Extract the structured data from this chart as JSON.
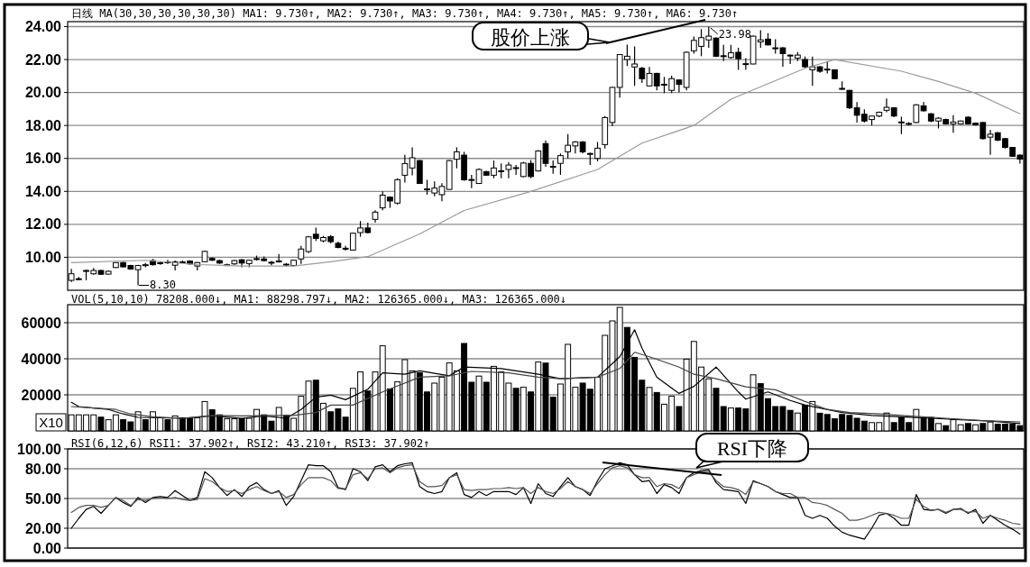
{
  "chart_data": [
    {
      "type": "candlestick",
      "categories": [
        null,
        null,
        null,
        null,
        null,
        null,
        null,
        null,
        null,
        null,
        null,
        null,
        null,
        null,
        null,
        null,
        null,
        null,
        null,
        null,
        null,
        null,
        null,
        null,
        null,
        null,
        null,
        null,
        null,
        null,
        null,
        null,
        null,
        null,
        null,
        null,
        null,
        null,
        null,
        null,
        null,
        null,
        null,
        null,
        null,
        null,
        null,
        null,
        null,
        null,
        null,
        null,
        null,
        null,
        null,
        null,
        null,
        null,
        null,
        null,
        null,
        null,
        null,
        null,
        null,
        null,
        null,
        null,
        null,
        null,
        null,
        null,
        null,
        null,
        null,
        null,
        null,
        null,
        null,
        null,
        null,
        null,
        null,
        null,
        null,
        null,
        null,
        null,
        null,
        null,
        null,
        null,
        null,
        null,
        null,
        null,
        null,
        null,
        null,
        null,
        null,
        null,
        null,
        null,
        null,
        null,
        null,
        null,
        null,
        null,
        null,
        null,
        null,
        null,
        null,
        null,
        null,
        null,
        null,
        null,
        null,
        null,
        null,
        null,
        null,
        null,
        null,
        null,
        null
      ],
      "ohlc": [
        [
          8.6,
          9.3,
          8.5,
          9.0
        ],
        [
          8.65,
          8.8,
          8.6,
          8.7
        ],
        [
          9.2,
          9.25,
          8.6,
          9.2
        ],
        [
          9.0,
          9.35,
          8.95,
          9.2
        ],
        [
          9.2,
          9.25,
          8.95,
          8.97
        ],
        [
          8.98,
          9.2,
          8.95,
          9.15
        ],
        [
          9.38,
          9.7,
          9.35,
          9.68
        ],
        [
          9.68,
          9.72,
          9.4,
          9.42
        ],
        [
          9.5,
          9.55,
          9.25,
          9.29
        ],
        [
          9.25,
          9.55,
          8.3,
          9.5
        ],
        [
          9.5,
          9.65,
          9.4,
          9.55
        ],
        [
          9.8,
          9.9,
          9.5,
          9.55
        ],
        [
          9.65,
          9.75,
          9.55,
          9.67
        ],
        [
          9.72,
          9.85,
          9.6,
          9.68
        ],
        [
          9.52,
          9.8,
          9.2,
          9.72
        ],
        [
          9.72,
          9.8,
          9.65,
          9.7
        ],
        [
          9.77,
          9.82,
          9.55,
          9.6
        ],
        [
          9.47,
          9.72,
          9.2,
          9.68
        ],
        [
          9.73,
          10.4,
          9.7,
          10.36
        ],
        [
          9.93,
          10.0,
          9.78,
          9.82
        ],
        [
          9.8,
          9.85,
          9.6,
          9.65
        ],
        [
          9.52,
          9.62,
          9.5,
          9.55
        ],
        [
          9.6,
          9.85,
          9.55,
          9.8
        ],
        [
          9.85,
          9.9,
          9.4,
          9.65
        ],
        [
          9.62,
          9.85,
          9.4,
          9.82
        ],
        [
          9.9,
          10.1,
          9.8,
          9.92
        ],
        [
          9.9,
          10.05,
          9.75,
          9.8
        ],
        [
          9.7,
          9.78,
          9.5,
          9.68
        ],
        [
          9.72,
          10.2,
          9.68,
          9.78
        ],
        [
          9.58,
          9.65,
          9.45,
          9.55
        ],
        [
          9.5,
          9.85,
          9.45,
          9.82
        ],
        [
          9.9,
          10.7,
          9.6,
          10.5
        ],
        [
          10.35,
          11.3,
          10.25,
          11.24
        ],
        [
          11.4,
          11.8,
          11.0,
          11.15
        ],
        [
          11.0,
          11.3,
          10.9,
          11.2
        ],
        [
          11.25,
          11.35,
          10.85,
          10.95
        ],
        [
          10.85,
          10.95,
          10.55,
          10.6
        ],
        [
          10.55,
          10.7,
          10.4,
          10.5
        ],
        [
          10.44,
          11.5,
          10.4,
          11.46
        ],
        [
          11.5,
          12.2,
          11.25,
          11.78
        ],
        [
          11.78,
          12.1,
          11.45,
          11.5
        ],
        [
          12.3,
          12.85,
          12.1,
          12.74
        ],
        [
          13.0,
          14.0,
          12.85,
          13.77
        ],
        [
          13.65,
          13.7,
          13.0,
          13.42
        ],
        [
          13.29,
          14.8,
          13.2,
          14.71
        ],
        [
          14.98,
          16.22,
          14.53,
          15.69
        ],
        [
          15.42,
          16.67,
          14.98,
          16.04
        ],
        [
          15.87,
          15.9,
          14.45,
          14.48
        ],
        [
          14.1,
          14.7,
          13.8,
          14.15
        ],
        [
          13.9,
          14.6,
          13.7,
          14.2
        ],
        [
          13.8,
          14.5,
          13.4,
          14.3
        ],
        [
          14.12,
          15.9,
          14.1,
          15.87
        ],
        [
          15.95,
          16.67,
          15.4,
          16.4
        ],
        [
          16.2,
          16.4,
          14.65,
          14.7
        ],
        [
          14.7,
          15.0,
          14.2,
          14.72
        ],
        [
          14.48,
          15.4,
          14.45,
          15.33
        ],
        [
          15.2,
          15.25,
          14.95,
          14.98
        ],
        [
          14.98,
          15.87,
          14.8,
          15.42
        ],
        [
          15.22,
          15.7,
          14.8,
          15.25
        ],
        [
          15.33,
          15.78,
          14.8,
          15.6
        ],
        [
          15.44,
          15.6,
          15.0,
          15.4
        ],
        [
          14.9,
          15.8,
          14.85,
          15.72
        ],
        [
          15.7,
          15.9,
          14.8,
          14.9
        ],
        [
          15.24,
          16.5,
          15.2,
          16.45
        ],
        [
          16.9,
          17.1,
          15.5,
          15.7
        ],
        [
          15.5,
          15.87,
          15.07,
          15.52
        ],
        [
          15.7,
          16.3,
          15.0,
          16.17
        ],
        [
          16.4,
          17.47,
          16.0,
          16.8
        ],
        [
          16.76,
          17.05,
          16.3,
          17.0
        ],
        [
          17.0,
          17.05,
          16.3,
          16.4
        ],
        [
          16.3,
          16.35,
          15.6,
          16.3
        ],
        [
          16.0,
          17.0,
          15.82,
          16.62
        ],
        [
          16.84,
          18.57,
          16.6,
          18.48
        ],
        [
          18.18,
          20.35,
          17.96,
          20.31
        ],
        [
          20.31,
          22.3,
          19.69,
          22.3
        ],
        [
          22.0,
          22.9,
          21.6,
          22.2
        ],
        [
          21.55,
          22.8,
          20.4,
          21.73
        ],
        [
          21.47,
          21.55,
          20.58,
          20.84
        ],
        [
          20.4,
          21.55,
          20.36,
          21.16
        ],
        [
          21.16,
          21.2,
          20.13,
          20.4
        ],
        [
          20.5,
          20.95,
          19.96,
          20.5
        ],
        [
          20.13,
          21.02,
          19.96,
          20.84
        ],
        [
          20.76,
          20.8,
          20.0,
          20.49
        ],
        [
          20.31,
          22.5,
          20.13,
          22.44
        ],
        [
          22.53,
          23.4,
          22.36,
          23.16
        ],
        [
          22.8,
          23.85,
          22.2,
          23.33
        ],
        [
          23.19,
          23.98,
          22.71,
          23.42
        ],
        [
          23.3,
          23.35,
          22.15,
          22.2
        ],
        [
          22.23,
          22.89,
          21.91,
          22.2
        ],
        [
          22.12,
          22.89,
          22.05,
          22.41
        ],
        [
          22.44,
          22.71,
          21.38,
          22.05
        ],
        [
          21.73,
          22.09,
          21.38,
          21.75
        ],
        [
          21.73,
          23.45,
          21.7,
          23.42
        ],
        [
          23.07,
          23.78,
          22.71,
          23.19
        ],
        [
          23.24,
          23.6,
          22.85,
          22.89
        ],
        [
          22.71,
          23.24,
          22.36,
          22.7
        ],
        [
          22.71,
          22.75,
          21.56,
          22.36
        ],
        [
          22.27,
          22.3,
          21.73,
          22.25
        ],
        [
          22.09,
          22.45,
          21.91,
          22.27
        ],
        [
          22.0,
          22.18,
          21.47,
          21.56
        ],
        [
          21.38,
          22.18,
          20.4,
          21.56
        ],
        [
          21.56,
          21.6,
          21.2,
          21.29
        ],
        [
          21.4,
          21.91,
          21.16,
          21.42
        ],
        [
          21.38,
          21.4,
          20.8,
          20.84
        ],
        [
          20.2,
          20.67,
          20.15,
          20.25
        ],
        [
          20.13,
          20.15,
          19.0,
          19.07
        ],
        [
          19.07,
          19.42,
          18.18,
          18.62
        ],
        [
          18.68,
          18.98,
          18.18,
          18.27
        ],
        [
          18.36,
          18.6,
          18.0,
          18.57
        ],
        [
          18.57,
          18.85,
          18.5,
          18.8
        ],
        [
          18.92,
          19.64,
          18.8,
          19.1
        ],
        [
          19.07,
          19.1,
          18.5,
          18.57
        ],
        [
          18.2,
          18.53,
          17.47,
          18.21
        ],
        [
          18.1,
          18.2,
          18.0,
          18.12
        ],
        [
          18.18,
          19.3,
          18.15,
          19.25
        ],
        [
          19.19,
          19.42,
          18.85,
          18.89
        ],
        [
          18.71,
          18.75,
          18.2,
          18.27
        ],
        [
          18.27,
          18.5,
          17.82,
          18.44
        ],
        [
          18.36,
          18.4,
          18.05,
          18.09
        ],
        [
          18.09,
          18.62,
          17.56,
          18.21
        ],
        [
          18.09,
          18.3,
          18.05,
          18.27
        ],
        [
          18.5,
          18.55,
          18.05,
          18.09
        ],
        [
          18.14,
          18.18,
          18.0,
          18.04
        ],
        [
          18.18,
          18.2,
          17.15,
          17.2
        ],
        [
          17.29,
          17.73,
          16.22,
          17.47
        ],
        [
          17.56,
          17.6,
          17.05,
          17.11
        ],
        [
          17.2,
          17.25,
          16.6,
          16.67
        ],
        [
          16.67,
          16.7,
          16.1,
          16.13
        ],
        [
          16.2,
          16.25,
          15.69,
          15.96
        ]
      ],
      "series": [
        {
          "type": "line",
          "color": "#9a9a9a",
          "values": [
            9.68,
            null,
            null,
            null,
            null,
            null,
            null,
            null,
            null,
            null,
            9.82,
            null,
            null,
            null,
            null,
            null,
            null,
            9.56,
            null,
            null,
            null,
            null,
            null,
            9.47,
            null,
            null,
            null,
            null,
            null,
            null,
            9.47,
            null,
            null,
            null,
            null,
            9.73,
            null,
            null,
            null,
            null,
            10.04,
            null,
            null,
            null,
            null,
            null,
            null,
            11.42,
            null,
            null,
            null,
            null,
            null,
            12.84,
            null,
            null,
            null,
            null,
            null,
            null,
            null,
            null,
            14.0,
            null,
            null,
            null,
            null,
            null,
            null,
            null,
            null,
            15.33,
            null,
            null,
            null,
            null,
            null,
            16.93,
            null,
            null,
            null,
            null,
            null,
            null,
            18.0,
            null,
            null,
            null,
            null,
            19.6,
            null,
            null,
            null,
            null,
            null,
            null,
            null,
            null,
            null,
            21.47,
            null,
            null,
            null,
            22.0,
            null,
            null,
            null,
            null,
            null,
            null,
            null,
            null,
            21.29,
            null,
            null,
            null,
            null,
            20.67,
            null,
            null,
            null,
            null,
            19.96,
            null,
            null,
            null,
            null,
            null,
            18.71
          ]
        }
      ],
      "ylim": [
        8.0,
        24.3
      ],
      "yticks": [
        {
          "value": 10,
          "label": "10.00"
        },
        {
          "value": 12,
          "label": "12.00"
        },
        {
          "value": 14,
          "label": "14.00"
        },
        {
          "value": 16,
          "label": "16.00"
        },
        {
          "value": 18,
          "label": "18.00"
        },
        {
          "value": 20,
          "label": "20.00"
        },
        {
          "value": 22,
          "label": "22.00"
        },
        {
          "value": 24,
          "label": "24.00"
        }
      ],
      "grid": "y",
      "annotations": [
        "日线 MA(30,30,30,30,30,30) MA1: 9.730↑, MA2: 9.730↑, MA3: 9.730↑, MA4: 9.730↑, MA5: 9.730↑, MA6: 9.730↑",
        "股价上涨",
        "23.98",
        "8.30"
      ]
    },
    {
      "type": "bar",
      "categories": [
        null,
        null,
        null,
        null,
        null,
        null,
        null,
        null,
        null,
        null,
        null,
        null,
        null,
        null,
        null,
        null,
        null,
        null,
        null,
        null,
        null,
        null,
        null,
        null,
        null,
        null,
        null,
        null,
        null,
        null,
        null,
        null,
        null,
        null,
        null,
        null,
        null,
        null,
        null,
        null,
        null,
        null,
        null,
        null,
        null,
        null,
        null,
        null,
        null,
        null,
        null,
        null,
        null,
        null,
        null,
        null,
        null,
        null,
        null,
        null,
        null,
        null,
        null,
        null,
        null,
        null,
        null,
        null,
        null,
        null,
        null,
        null,
        null,
        null,
        null,
        null,
        null,
        null,
        null,
        null,
        null,
        null,
        null,
        null,
        null,
        null,
        null,
        null,
        null,
        null,
        null,
        null,
        null,
        null,
        null,
        null,
        null,
        null,
        null,
        null,
        null,
        null,
        null,
        null,
        null,
        null,
        null,
        null,
        null,
        null,
        null,
        null,
        null,
        null,
        null,
        null,
        null,
        null,
        null,
        null,
        null,
        null,
        null,
        null,
        null,
        null,
        null,
        null,
        null
      ],
      "values": [
        8900,
        8900,
        8900,
        8900,
        7600,
        6200,
        8900,
        6200,
        5000,
        10600,
        6200,
        10600,
        7300,
        6200,
        8300,
        7300,
        7000,
        7300,
        16300,
        11700,
        8900,
        6700,
        6700,
        6800,
        7000,
        11900,
        8900,
        5400,
        13000,
        8600,
        7000,
        19200,
        27600,
        28100,
        15300,
        10600,
        12200,
        7600,
        23600,
        32700,
        22100,
        32700,
        47200,
        23300,
        27200,
        39500,
        33300,
        32200,
        21600,
        26500,
        29800,
        37700,
        33300,
        48500,
        27000,
        30400,
        27000,
        35800,
        32700,
        26500,
        23600,
        24200,
        21600,
        38200,
        37600,
        18700,
        26000,
        48000,
        24200,
        26500,
        23100,
        29800,
        53000,
        61000,
        68500,
        57400,
        40800,
        28100,
        24100,
        21300,
        14800,
        19200,
        13500,
        39800,
        49600,
        35400,
        28900,
        23600,
        13500,
        12700,
        12700,
        12200,
        31100,
        26200,
        17900,
        13500,
        13500,
        11400,
        9900,
        14300,
        16300,
        9800,
        9100,
        6700,
        9100,
        8600,
        7000,
        5400,
        4600,
        4600,
        9900,
        4600,
        7500,
        4600,
        11900,
        7000,
        7500,
        4100,
        2900,
        6200,
        3400,
        4100,
        3400,
        4100,
        4900,
        3700,
        3700,
        3700,
        2900
      ],
      "colors": [
        "#ffffff",
        "#ffffff",
        "#ffffff",
        "#ffffff",
        "#000000",
        "#ffffff",
        "#ffffff",
        "#000000",
        "#000000",
        "#ffffff",
        "#000000",
        "#ffffff",
        "#ffffff",
        "#000000",
        "#ffffff",
        "#000000",
        "#000000",
        "#ffffff",
        "#ffffff",
        "#000000",
        "#000000",
        "#ffffff",
        "#ffffff",
        "#000000",
        "#ffffff",
        "#ffffff",
        "#000000",
        "#000000",
        "#ffffff",
        "#000000",
        "#ffffff",
        "#ffffff",
        "#ffffff",
        "#000000",
        "#ffffff",
        "#000000",
        "#000000",
        "#000000",
        "#ffffff",
        "#ffffff",
        "#000000",
        "#ffffff",
        "#ffffff",
        "#000000",
        "#ffffff",
        "#ffffff",
        "#ffffff",
        "#000000",
        "#000000",
        "#ffffff",
        "#ffffff",
        "#ffffff",
        "#ffffff",
        "#000000",
        "#000000",
        "#ffffff",
        "#000000",
        "#ffffff",
        "#ffffff",
        "#ffffff",
        "#000000",
        "#ffffff",
        "#000000",
        "#ffffff",
        "#000000",
        "#000000",
        "#ffffff",
        "#ffffff",
        "#ffffff",
        "#000000",
        "#000000",
        "#ffffff",
        "#ffffff",
        "#ffffff",
        "#ffffff",
        "#000000",
        "#000000",
        "#000000",
        "#ffffff",
        "#000000",
        "#ffffff",
        "#ffffff",
        "#000000",
        "#ffffff",
        "#ffffff",
        "#ffffff",
        "#ffffff",
        "#000000",
        "#000000",
        "#ffffff",
        "#000000",
        "#000000",
        "#ffffff",
        "#000000",
        "#000000",
        "#000000",
        "#000000",
        "#000000",
        "#ffffff",
        "#000000",
        "#ffffff",
        "#000000",
        "#000000",
        "#000000",
        "#000000",
        "#000000",
        "#000000",
        "#000000",
        "#ffffff",
        "#ffffff",
        "#ffffff",
        "#000000",
        "#000000",
        "#000000",
        "#ffffff",
        "#000000",
        "#000000",
        "#ffffff",
        "#000000",
        "#ffffff",
        "#ffffff",
        "#000000",
        "#ffffff",
        "#000000",
        "#ffffff",
        "#000000",
        "#000000",
        "#000000",
        "#000000"
      ],
      "series": [
        {
          "type": "line",
          "color": "#000000",
          "values": [
            15900,
            13500,
            null,
            12700,
            null,
            11900,
            null,
            9400,
            null,
            7500,
            null,
            null,
            null,
            null,
            null,
            7000,
            null,
            null,
            null,
            8300,
            null,
            null,
            null,
            7000,
            null,
            null,
            8300,
            null,
            null,
            7000,
            null,
            11900,
            null,
            18700,
            null,
            19800,
            null,
            17300,
            null,
            null,
            23100,
            null,
            32200,
            null,
            null,
            31400,
            null,
            33300,
            null,
            null,
            null,
            30600,
            null,
            35400,
            null,
            null,
            null,
            null,
            34600,
            null,
            null,
            null,
            null,
            31400,
            null,
            null,
            28900,
            null,
            null,
            null,
            null,
            29800,
            null,
            null,
            41100,
            null,
            56100,
            45900,
            null,
            29800,
            null,
            null,
            20800,
            null,
            24700,
            null,
            null,
            35400,
            null,
            null,
            21600,
            17600,
            null,
            null,
            21600,
            null,
            null,
            16900,
            null,
            14300,
            null,
            12700,
            null,
            null,
            10200,
            null,
            null,
            null,
            8600,
            null,
            null,
            null,
            7800,
            null,
            null,
            null,
            7000,
            null,
            null,
            null,
            6200,
            null,
            null,
            null,
            5400,
            null,
            null,
            null,
            4100
          ]
        },
        {
          "type": "line",
          "color": "#444444",
          "values": [
            13500,
            null,
            null,
            12700,
            null,
            null,
            11900,
            null,
            9400,
            null,
            null,
            7800,
            null,
            null,
            null,
            7000,
            null,
            null,
            null,
            8600,
            null,
            null,
            null,
            8300,
            null,
            null,
            null,
            8600,
            null,
            null,
            8600,
            null,
            null,
            10200,
            null,
            14300,
            null,
            null,
            14300,
            null,
            null,
            null,
            21600,
            null,
            null,
            null,
            null,
            29800,
            null,
            null,
            null,
            30600,
            null,
            null,
            33000,
            null,
            null,
            null,
            null,
            32200,
            null,
            null,
            null,
            29800,
            null,
            null,
            28900,
            null,
            null,
            null,
            null,
            29800,
            null,
            null,
            34600,
            null,
            43600,
            null,
            41100,
            null,
            null,
            null,
            35400,
            null,
            31400,
            null,
            null,
            28900,
            null,
            null,
            null,
            24400,
            null,
            null,
            null,
            22800,
            null,
            null,
            null,
            16300,
            null,
            null,
            11900,
            null,
            null,
            10200,
            null,
            null,
            null,
            9400,
            null,
            null,
            null,
            8300,
            null,
            null,
            null,
            null,
            7000,
            null,
            null,
            null,
            null,
            5700,
            null,
            null,
            null,
            null,
            5000
          ]
        }
      ],
      "ylim": [
        0,
        70000
      ],
      "yticks": [
        20000,
        40000,
        60000
      ],
      "ylabel": "X10",
      "grid": "y",
      "annotations": [
        "VOL(5,10,10) 78208.000↓, MA1: 88298.797↓, MA2: 126365.000↓, MA3: 126365.000↓"
      ]
    },
    {
      "type": "line",
      "categories": [
        null,
        null,
        null,
        null,
        null,
        null,
        null,
        null,
        null,
        null,
        null,
        null,
        null,
        null,
        null,
        null,
        null,
        null,
        null,
        null,
        null,
        null,
        null,
        null,
        null,
        null,
        null,
        null,
        null,
        null,
        null,
        null,
        null,
        null,
        null,
        null,
        null,
        null,
        null,
        null,
        null,
        null,
        null,
        null,
        null,
        null,
        null,
        null,
        null,
        null,
        null,
        null,
        null,
        null,
        null,
        null,
        null,
        null,
        null,
        null,
        null,
        null,
        null,
        null,
        null,
        null,
        null,
        null,
        null,
        null,
        null,
        null,
        null,
        null,
        null,
        null,
        null,
        null,
        null,
        null,
        null,
        null,
        null,
        null,
        null,
        null,
        null,
        null,
        null,
        null,
        null,
        null,
        null,
        null,
        null,
        null,
        null,
        null,
        null,
        null,
        null,
        null,
        null,
        null,
        null,
        null,
        null,
        null,
        null,
        null,
        null,
        null,
        null,
        null,
        null,
        null,
        null,
        null,
        null,
        null,
        null,
        null,
        null,
        null,
        null,
        null,
        null,
        null,
        null
      ],
      "series": [
        {
          "color": "#000000",
          "values": [
            20,
            30,
            39,
            42,
            35,
            43,
            51,
            46,
            42,
            51,
            46,
            51,
            52,
            51,
            58,
            53,
            48,
            51,
            77,
            71,
            61,
            53,
            59,
            52,
            62,
            66,
            59,
            55,
            58,
            43,
            52,
            68,
            84,
            83,
            83,
            77,
            61,
            59,
            80,
            77,
            68,
            82,
            84,
            77,
            83,
            85,
            86,
            62,
            57,
            55,
            57,
            71,
            76,
            54,
            51,
            57,
            53,
            57,
            57,
            57,
            54,
            61,
            45,
            65,
            55,
            52,
            62,
            71,
            62,
            59,
            53,
            68,
            80,
            83,
            86,
            84,
            74,
            67,
            68,
            55,
            64,
            61,
            55,
            71,
            76,
            78,
            79,
            66,
            59,
            58,
            57,
            45,
            68,
            65,
            62,
            57,
            54,
            51,
            51,
            33,
            30,
            33,
            30,
            22,
            16,
            13,
            11,
            9,
            20,
            33,
            35,
            30,
            23,
            23,
            54,
            39,
            38,
            39,
            35,
            39,
            40,
            35,
            39,
            25,
            33,
            28,
            23,
            19,
            14
          ]
        },
        {
          "color": "#555555",
          "values": [
            36,
            41,
            43,
            43,
            41,
            43,
            51,
            48,
            43,
            49,
            48,
            50,
            51,
            50,
            51,
            49,
            48,
            49,
            70,
            67,
            61,
            57,
            58,
            55,
            59,
            62,
            58,
            55,
            57,
            51,
            54,
            64,
            71,
            71,
            71,
            68,
            60,
            60,
            74,
            76,
            70,
            80,
            81,
            76,
            81,
            83,
            84,
            67,
            62,
            62,
            63,
            71,
            74,
            59,
            58,
            59,
            59,
            60,
            60,
            61,
            60,
            61,
            55,
            61,
            57,
            55,
            60,
            67,
            62,
            59,
            55,
            65,
            74,
            81,
            83,
            81,
            74,
            71,
            71,
            62,
            65,
            64,
            60,
            71,
            74,
            77,
            77,
            68,
            62,
            61,
            59,
            54,
            67,
            65,
            62,
            57,
            55,
            55,
            51,
            51,
            46,
            45,
            43,
            39,
            35,
            28,
            28,
            30,
            33,
            36,
            35,
            33,
            30,
            30,
            49,
            42,
            38,
            39,
            36,
            39,
            39,
            36,
            37,
            30,
            33,
            30,
            28,
            25,
            24
          ]
        }
      ],
      "ylim": [
        0,
        100
      ],
      "yticks": [
        {
          "value": 0,
          "label": "0.00"
        },
        {
          "value": 20,
          "label": "20.00"
        },
        {
          "value": 50,
          "label": "50.00"
        },
        {
          "value": 80,
          "label": "80.00"
        },
        {
          "value": 100,
          "label": "100.00"
        }
      ],
      "grid": "y",
      "annotations": [
        "RSI(6,12,6) RSI1: 37.902↑, RSI2: 43.210↑, RSI3: 37.902↑",
        "RSI下降"
      ]
    }
  ]
}
